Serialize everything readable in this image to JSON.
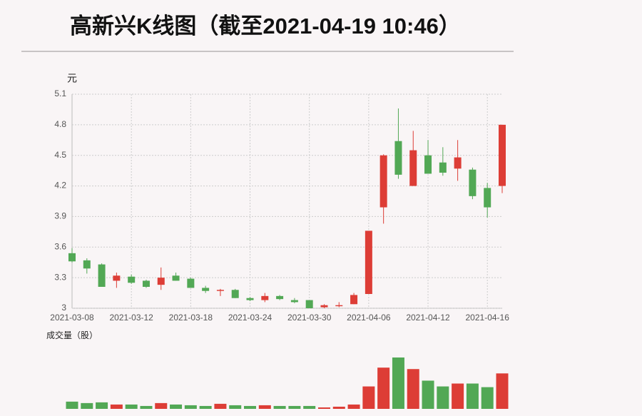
{
  "chart_data": {
    "type": "candlestick",
    "title": "高新兴K线图（截至2021-04-19 10:46）",
    "y_unit": "元",
    "volume_label": "成交量（股）",
    "categories": [
      "2021-03-08",
      null,
      null,
      null,
      "2021-03-12",
      null,
      null,
      null,
      "2021-03-18",
      null,
      null,
      null,
      "2021-03-24",
      null,
      null,
      null,
      "2021-03-30",
      null,
      null,
      null,
      "2021-04-06",
      null,
      null,
      null,
      "2021-04-12",
      null,
      null,
      null,
      "2021-04-16",
      null
    ],
    "open": [
      3.54,
      3.47,
      3.43,
      3.27,
      3.31,
      3.27,
      3.23,
      3.32,
      3.29,
      3.2,
      3.17,
      3.18,
      3.1,
      3.08,
      3.12,
      3.08,
      3.08,
      3.01,
      3.02,
      3.04,
      3.14,
      3.99,
      4.64,
      4.2,
      4.5,
      4.43,
      4.37,
      4.36,
      4.18,
      4.2
    ],
    "high": [
      3.59,
      3.49,
      3.44,
      3.35,
      3.33,
      3.28,
      3.4,
      3.35,
      3.3,
      3.22,
      3.19,
      3.19,
      3.11,
      3.15,
      3.13,
      3.1,
      3.08,
      3.04,
      3.06,
      3.15,
      3.76,
      4.51,
      4.96,
      4.74,
      4.65,
      4.58,
      4.65,
      4.38,
      4.23,
      4.8
    ],
    "low": [
      3.45,
      3.34,
      3.21,
      3.2,
      3.24,
      3.2,
      3.18,
      3.27,
      3.2,
      3.15,
      3.12,
      3.1,
      3.07,
      3.06,
      3.08,
      3.05,
      3.0,
      3.0,
      3.01,
      3.04,
      3.14,
      3.83,
      4.27,
      4.2,
      4.32,
      4.3,
      4.25,
      4.07,
      3.89,
      4.13
    ],
    "close": [
      3.46,
      3.39,
      3.21,
      3.32,
      3.25,
      3.21,
      3.3,
      3.27,
      3.2,
      3.17,
      3.18,
      3.1,
      3.08,
      3.12,
      3.09,
      3.06,
      3.0,
      3.03,
      3.03,
      3.13,
      3.76,
      4.5,
      4.31,
      4.55,
      4.32,
      4.33,
      4.48,
      4.1,
      3.99,
      4.8
    ],
    "volume": [
      1000000,
      800000,
      900000,
      600000,
      600000,
      400000,
      800000,
      600000,
      500000,
      400000,
      700000,
      500000,
      400000,
      500000,
      400000,
      400000,
      400000,
      200000,
      300000,
      600000,
      3100000,
      5700000,
      7100000,
      5500000,
      3900000,
      3100000,
      3500000,
      3500000,
      3000000,
      4900000
    ],
    "up_color": "#dd3d36",
    "down_color": "#52a855",
    "ylim": [
      3,
      5.1
    ],
    "yticks": [
      3,
      3.3,
      3.6,
      3.9,
      4.2,
      4.5,
      4.8,
      5.1
    ],
    "grid": true
  }
}
